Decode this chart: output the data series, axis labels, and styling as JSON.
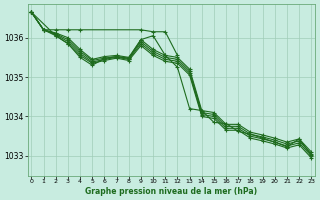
{
  "title": "Graphe pression niveau de la mer (hPa)",
  "bg_color": "#c8ece0",
  "line_color": "#1e6b1e",
  "grid_color": "#a0cdb8",
  "ylim": [
    1032.5,
    1036.85
  ],
  "xlim": [
    -0.3,
    23.3
  ],
  "yticks": [
    1033,
    1034,
    1035,
    1036
  ],
  "xticks": [
    0,
    1,
    2,
    3,
    4,
    5,
    6,
    7,
    8,
    9,
    10,
    11,
    12,
    13,
    14,
    15,
    16,
    17,
    18,
    19,
    20,
    21,
    22,
    23
  ],
  "series": [
    {
      "x": [
        0,
        1,
        2,
        3,
        4,
        5,
        6,
        7,
        8,
        9,
        10,
        11,
        12,
        13,
        14,
        15,
        16,
        17,
        18,
        19,
        20,
        21,
        22,
        23
      ],
      "y": [
        1036.65,
        1036.2,
        1036.05,
        1035.85,
        1035.55,
        1035.35,
        1035.42,
        1035.48,
        1035.42,
        1035.8,
        1035.55,
        1035.4,
        1035.35,
        1035.05,
        1034.0,
        1033.95,
        1033.65,
        1033.65,
        1033.45,
        1033.38,
        1033.3,
        1033.2,
        1033.28,
        1032.95
      ]
    },
    {
      "x": [
        0,
        1,
        2,
        3,
        4,
        5,
        6,
        7,
        8,
        9,
        10,
        11,
        12,
        13,
        14,
        15,
        16,
        17,
        18,
        19,
        20,
        21,
        22,
        23
      ],
      "y": [
        1036.65,
        1036.2,
        1036.08,
        1035.9,
        1035.6,
        1035.38,
        1035.45,
        1035.5,
        1035.45,
        1035.85,
        1035.6,
        1035.45,
        1035.4,
        1035.1,
        1034.05,
        1034.0,
        1033.7,
        1033.7,
        1033.5,
        1033.43,
        1033.35,
        1033.25,
        1033.33,
        1033.0
      ]
    },
    {
      "x": [
        0,
        1,
        2,
        3,
        4,
        5,
        6,
        7,
        8,
        9,
        10,
        11,
        12,
        13,
        14,
        15,
        16,
        17,
        18,
        19,
        20,
        21,
        22,
        23
      ],
      "y": [
        1036.65,
        1036.2,
        1036.1,
        1035.95,
        1035.65,
        1035.42,
        1035.48,
        1035.52,
        1035.48,
        1035.9,
        1035.65,
        1035.5,
        1035.45,
        1035.15,
        1034.1,
        1034.05,
        1033.75,
        1033.75,
        1033.55,
        1033.48,
        1033.4,
        1033.3,
        1033.38,
        1033.05
      ]
    },
    {
      "x": [
        0,
        1,
        2,
        3,
        4,
        5,
        6,
        7,
        8,
        9,
        10,
        11,
        12,
        13,
        14,
        15,
        16,
        17,
        18,
        19,
        20,
        21,
        22,
        23
      ],
      "y": [
        1036.65,
        1036.2,
        1036.12,
        1036.0,
        1035.7,
        1035.45,
        1035.52,
        1035.55,
        1035.5,
        1035.95,
        1035.7,
        1035.55,
        1035.5,
        1035.2,
        1034.15,
        1034.1,
        1033.8,
        1033.8,
        1033.6,
        1033.53,
        1033.45,
        1033.35,
        1033.43,
        1033.1
      ]
    }
  ],
  "line_flat": {
    "x": [
      0,
      1,
      2,
      3,
      4,
      9,
      10,
      11,
      12
    ],
    "y": [
      1036.65,
      1036.2,
      1036.2,
      1036.2,
      1036.2,
      1036.2,
      1036.15,
      1036.15,
      1035.55
    ]
  },
  "line_wavy": {
    "x": [
      0,
      2,
      3,
      4,
      5,
      6,
      7,
      8,
      9,
      10,
      11,
      12,
      13,
      14,
      15,
      16,
      17,
      18,
      19,
      20,
      21,
      22,
      23
    ],
    "y": [
      1036.65,
      1036.05,
      1035.85,
      1035.5,
      1035.3,
      1035.47,
      1035.52,
      1035.47,
      1035.95,
      1036.05,
      1035.55,
      1035.25,
      1034.2,
      1034.15,
      1033.85,
      1033.82,
      1033.62,
      1033.55,
      1033.45,
      1033.35,
      1033.23,
      1033.43,
      1033.02
    ]
  }
}
